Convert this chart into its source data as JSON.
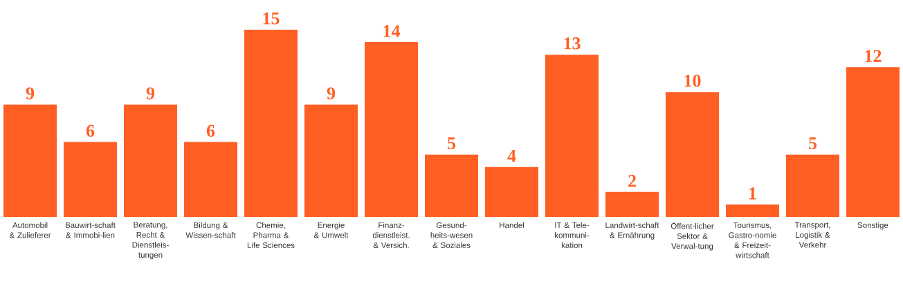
{
  "chart_data": {
    "type": "bar",
    "categories": [
      "Automobil & Zulieferer",
      "Bauwirt-schaft & Immobi-lien",
      "Beratung, Recht & Dienstleis-tungen",
      "Bildung & Wissen-schaft",
      "Chemie, Pharma & Life Sciences",
      "Energie & Umwelt",
      "Finanz-dienstleist. & Versich.",
      "Gesund-heits-wesen & Soziales",
      "Handel",
      "IT & Tele-kommuni-kation",
      "Landwirt-schaft & Ernährung",
      "Öffent-licher Sektor & Verwal-tung",
      "Tourismus, Gastro-nomie & Freizeit-wirtschaft",
      "Transport, Logistik & Verkehr",
      "Sonstige"
    ],
    "values": [
      9,
      6,
      9,
      6,
      15,
      9,
      14,
      5,
      4,
      13,
      2,
      10,
      1,
      5,
      12
    ],
    "color": "#ff5f22",
    "data_labels": true
  }
}
